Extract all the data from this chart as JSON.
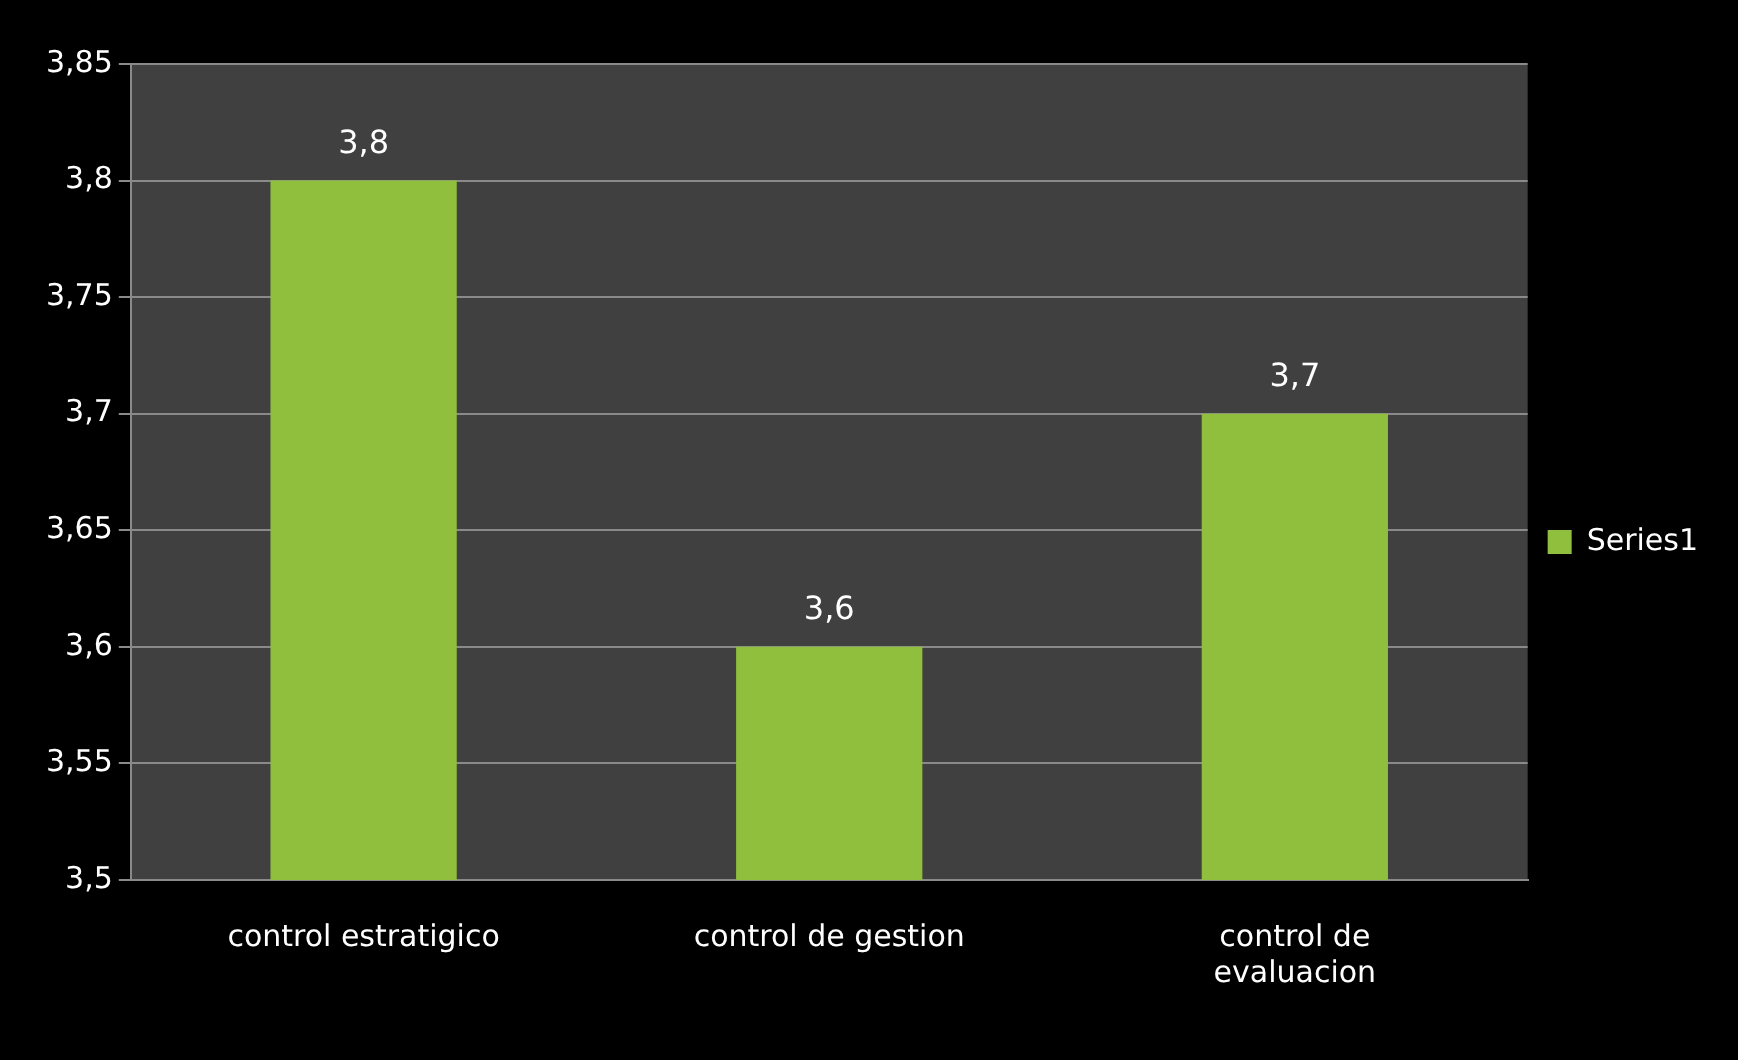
{
  "chart_data": {
    "type": "bar",
    "categories": [
      "control estratigico",
      "control de gestion",
      "control de evaluacion"
    ],
    "series": [
      {
        "name": "Series1",
        "color": "#8fbf3c",
        "values": [
          3.8,
          3.6,
          3.7
        ],
        "value_labels": [
          "3,8",
          "3,6",
          "3,7"
        ]
      }
    ],
    "ylim": [
      3.5,
      3.85
    ],
    "yticks": [
      {
        "value": 3.5,
        "label": "3,5"
      },
      {
        "value": 3.55,
        "label": "3,55"
      },
      {
        "value": 3.6,
        "label": "3,6"
      },
      {
        "value": 3.65,
        "label": "3,65"
      },
      {
        "value": 3.7,
        "label": "3,7"
      },
      {
        "value": 3.75,
        "label": "3,75"
      },
      {
        "value": 3.8,
        "label": "3,8"
      },
      {
        "value": 3.85,
        "label": "3,85"
      }
    ],
    "grid": "y",
    "legend": "right"
  }
}
